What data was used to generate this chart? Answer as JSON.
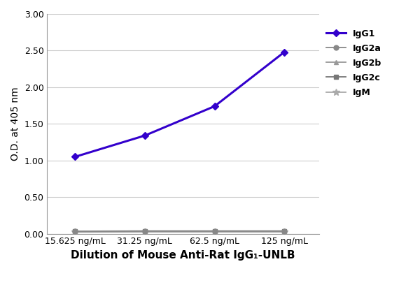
{
  "x_labels": [
    "15.625 ng/mL",
    "31.25 ng/mL",
    "62.5 ng/mL",
    "125 ng/mL"
  ],
  "x_values": [
    0,
    1,
    2,
    3
  ],
  "series": [
    {
      "label": "IgG1",
      "y": [
        1.05,
        1.34,
        1.74,
        2.48
      ],
      "color": "#3300cc",
      "marker": "D",
      "markersize": 5,
      "linewidth": 2.2,
      "zorder": 5,
      "linestyle": "-"
    },
    {
      "label": "IgG2a",
      "y": [
        0.032,
        0.035,
        0.035,
        0.035
      ],
      "color": "#888888",
      "marker": "o",
      "markersize": 5,
      "linewidth": 1.3,
      "zorder": 4,
      "linestyle": "-"
    },
    {
      "label": "IgG2b",
      "y": [
        0.028,
        0.03,
        0.03,
        0.03
      ],
      "color": "#999999",
      "marker": "^",
      "markersize": 5,
      "linewidth": 1.3,
      "zorder": 3,
      "linestyle": "-"
    },
    {
      "label": "IgG2c",
      "y": [
        0.034,
        0.038,
        0.038,
        0.038
      ],
      "color": "#777777",
      "marker": "s",
      "markersize": 5,
      "linewidth": 1.3,
      "zorder": 2,
      "linestyle": "-"
    },
    {
      "label": "IgM",
      "y": [
        0.022,
        0.025,
        0.025,
        0.025
      ],
      "color": "#aaaaaa",
      "marker": "*",
      "markersize": 7,
      "linewidth": 1.3,
      "zorder": 1,
      "linestyle": "-"
    }
  ],
  "ylabel": "O.D. at 405 nm",
  "xlabel": "Dilution of Mouse Anti-Rat IgG₁-UNLB",
  "ylim": [
    0.0,
    3.0
  ],
  "yticks": [
    0.0,
    0.5,
    1.0,
    1.5,
    2.0,
    2.5,
    3.0
  ],
  "ytick_labels": [
    "0.00",
    "0.50",
    "1.00",
    "1.50",
    "2.00",
    "2.50",
    "3.00"
  ],
  "background_color": "#ffffff",
  "grid_color": "#cccccc",
  "legend_fontsize": 9,
  "ylabel_fontsize": 10,
  "xlabel_fontsize": 11,
  "tick_fontsize": 9
}
